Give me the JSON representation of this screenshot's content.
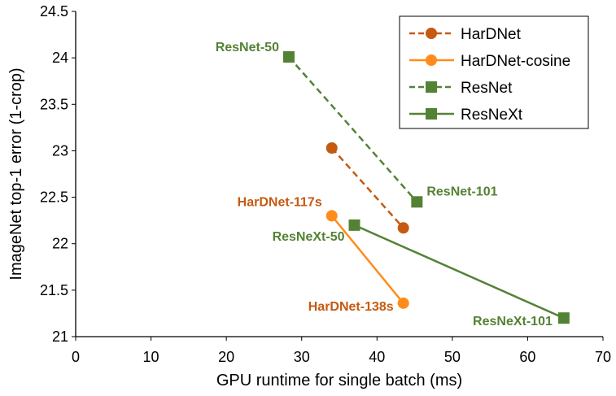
{
  "chart_data": {
    "type": "line",
    "xlabel": "GPU runtime for single batch (ms)",
    "ylabel": "ImageNet top-1 error (1-crop)",
    "xlim": [
      0,
      70
    ],
    "ylim": [
      21,
      24.5
    ],
    "xticks": [
      "0",
      "10",
      "20",
      "30",
      "40",
      "50",
      "60",
      "70"
    ],
    "yticks": [
      "21",
      "21.5",
      "22",
      "22.5",
      "23",
      "23.5",
      "24",
      "24.5"
    ],
    "grid": false,
    "legend_position": "top-right",
    "colors": {
      "orange_dark": "#c55a11",
      "orange": "#ff8c1a",
      "green": "#548235",
      "label_orange": "#c55a11",
      "label_green": "#548235"
    },
    "series": [
      {
        "name": "HarDNet",
        "marker": "circle",
        "dash": "dashed",
        "color": "#c55a11",
        "points": [
          {
            "x": 34,
            "y": 23.03,
            "label": ""
          },
          {
            "x": 43.5,
            "y": 22.17,
            "label": ""
          }
        ]
      },
      {
        "name": "HarDNet-cosine",
        "marker": "circle",
        "dash": "solid",
        "color": "#ff8c1a",
        "points": [
          {
            "x": 34,
            "y": 22.3,
            "label": "HarDNet-117s"
          },
          {
            "x": 43.5,
            "y": 21.36,
            "label": "HarDNet-138s"
          }
        ]
      },
      {
        "name": "ResNet",
        "marker": "square",
        "dash": "dashed",
        "color": "#548235",
        "points": [
          {
            "x": 28.3,
            "y": 24.01,
            "label": "ResNet-50"
          },
          {
            "x": 45.3,
            "y": 22.45,
            "label": "ResNet-101"
          }
        ]
      },
      {
        "name": "ResNeXt",
        "marker": "square",
        "dash": "solid",
        "color": "#548235",
        "points": [
          {
            "x": 37,
            "y": 22.2,
            "label": "ResNeXt-50"
          },
          {
            "x": 64.8,
            "y": 21.2,
            "label": "ResNeXt-101"
          }
        ]
      }
    ]
  }
}
